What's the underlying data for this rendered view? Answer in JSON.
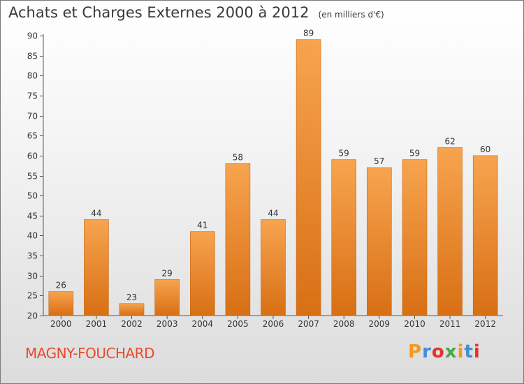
{
  "header": {
    "title": "Achats et Charges Externes 2000 à 2012",
    "subtitle": "(en milliers d'€)"
  },
  "footer": {
    "commune": "MAGNY-FOUCHARD",
    "brand": "Proxiti"
  },
  "colors": {
    "bar_top": "#f7a44f",
    "bar_bottom": "#d86f14",
    "commune_text": "#e84a2a",
    "logo_letters": [
      "#f29a1c",
      "#3f8fd4",
      "#e2342a",
      "#46a84a",
      "#f29a1c",
      "#3f8fd4",
      "#e2342a"
    ]
  },
  "chart_data": {
    "type": "bar",
    "title": "Achats et Charges Externes 2000 à 2012",
    "subtitle": "(en milliers d'€)",
    "categories": [
      "2000",
      "2001",
      "2002",
      "2003",
      "2004",
      "2005",
      "2006",
      "2007",
      "2008",
      "2009",
      "2010",
      "2011",
      "2012"
    ],
    "values": [
      26,
      44,
      23,
      29,
      41,
      58,
      44,
      89,
      59,
      57,
      59,
      62,
      60
    ],
    "ylim": [
      20,
      90
    ],
    "yticks": [
      20,
      25,
      30,
      35,
      40,
      45,
      50,
      55,
      60,
      65,
      70,
      75,
      80,
      85,
      90
    ],
    "grid": false,
    "data_labels": true
  }
}
